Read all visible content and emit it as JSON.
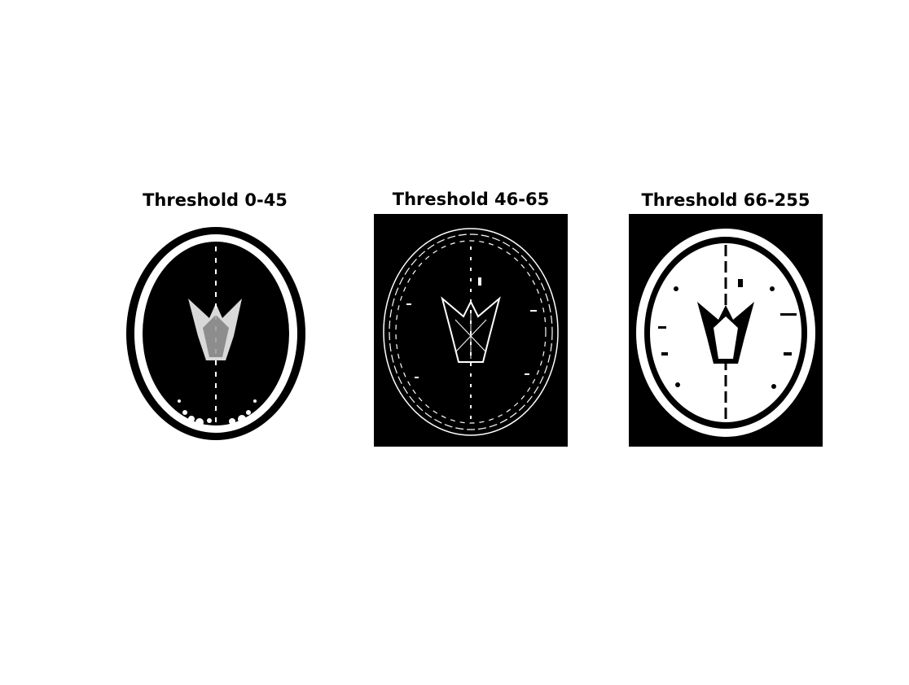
{
  "panels": [
    {
      "title": "Threshold 0-45"
    },
    {
      "title": "Threshold 46-65"
    },
    {
      "title": "Threshold 66-255"
    }
  ],
  "colors": {
    "background": "#ffffff",
    "foreground": "#ffffff",
    "mask_background": "#000000",
    "title_text": "#000000"
  }
}
